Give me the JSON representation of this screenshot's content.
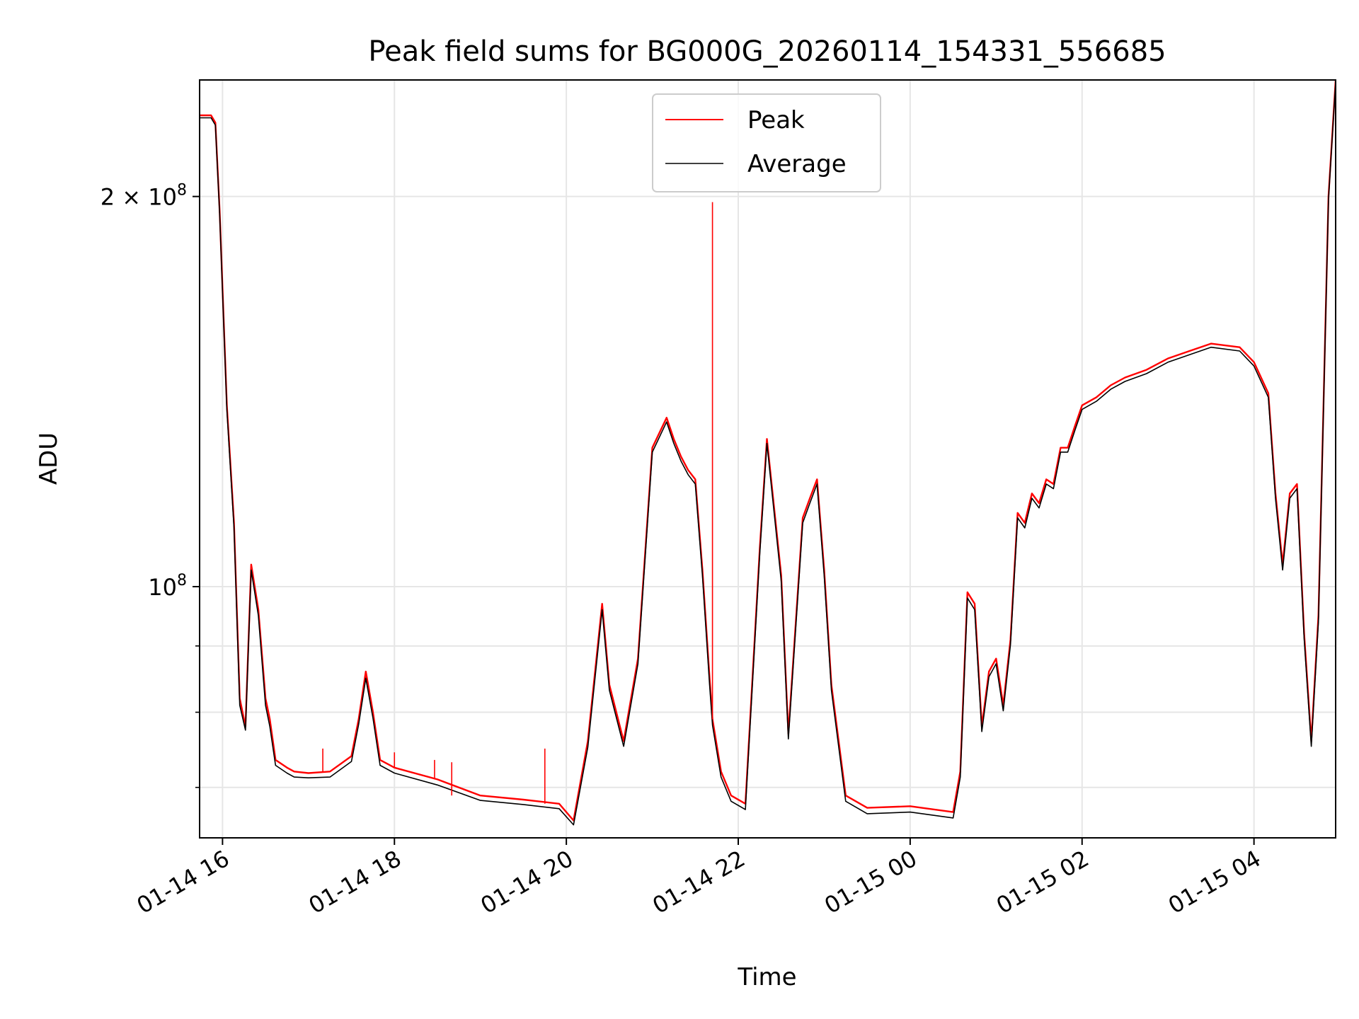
{
  "chart_data": {
    "type": "line",
    "title": "Peak field sums for BG000G_20260114_154331_556685",
    "xlabel": "Time",
    "ylabel": "ADU",
    "y_scale": "log",
    "grid": true,
    "legend_placement": "top-center",
    "xlim": [
      "2026-01-14 15:44",
      "2026-01-15 04:57"
    ],
    "ylim": [
      64000000,
      246000000
    ],
    "x_ticks": [
      "2026-01-14 16:00",
      "2026-01-14 18:00",
      "2026-01-14 20:00",
      "2026-01-14 22:00",
      "2026-01-15 00:00",
      "2026-01-15 02:00",
      "2026-01-15 04:00"
    ],
    "x_tick_labels": [
      "01-14 16",
      "01-14 18",
      "01-14 20",
      "01-14 22",
      "01-15 00",
      "01-15 02",
      "01-15 04"
    ],
    "y_tick_labels": [
      {
        "value": 200000000,
        "base": "2 × 10",
        "exp": "8"
      },
      {
        "value": 100000000,
        "base": "10",
        "exp": "8"
      }
    ],
    "y_minor_ticks": [
      70000000,
      80000000,
      90000000
    ],
    "series": [
      {
        "name": "Peak",
        "color": "#ff0000",
        "x": [
          "2026-01-14 15:44",
          "2026-01-14 15:52",
          "2026-01-14 15:55",
          "2026-01-14 15:58",
          "2026-01-14 16:03",
          "2026-01-14 16:08",
          "2026-01-14 16:12",
          "2026-01-14 16:16",
          "2026-01-14 16:20",
          "2026-01-14 16:25",
          "2026-01-14 16:30",
          "2026-01-14 16:33",
          "2026-01-14 16:37",
          "2026-01-14 16:45",
          "2026-01-14 16:50",
          "2026-01-14 17:00",
          "2026-01-14 17:15",
          "2026-01-14 17:30",
          "2026-01-14 17:35",
          "2026-01-14 17:40",
          "2026-01-14 17:45",
          "2026-01-14 17:50",
          "2026-01-14 17:55",
          "2026-01-14 18:00",
          "2026-01-14 18:30",
          "2026-01-14 19:00",
          "2026-01-14 19:30",
          "2026-01-14 19:55",
          "2026-01-14 20:05",
          "2026-01-14 20:15",
          "2026-01-14 20:25",
          "2026-01-14 20:30",
          "2026-01-14 20:40",
          "2026-01-14 20:50",
          "2026-01-14 21:00",
          "2026-01-14 21:10",
          "2026-01-14 21:15",
          "2026-01-14 21:20",
          "2026-01-14 21:25",
          "2026-01-14 21:30",
          "2026-01-14 21:35",
          "2026-01-14 21:40",
          "2026-01-14 21:42",
          "2026-01-14 21:48",
          "2026-01-14 21:55",
          "2026-01-14 22:05",
          "2026-01-14 22:15",
          "2026-01-14 22:20",
          "2026-01-14 22:30",
          "2026-01-14 22:35",
          "2026-01-14 22:45",
          "2026-01-14 22:50",
          "2026-01-14 22:55",
          "2026-01-14 23:00",
          "2026-01-14 23:05",
          "2026-01-14 23:15",
          "2026-01-14 23:30",
          "2026-01-15 00:00",
          "2026-01-15 00:30",
          "2026-01-15 00:35",
          "2026-01-15 00:40",
          "2026-01-15 00:45",
          "2026-01-15 00:50",
          "2026-01-15 00:55",
          "2026-01-15 01:00",
          "2026-01-15 01:05",
          "2026-01-15 01:10",
          "2026-01-15 01:15",
          "2026-01-15 01:20",
          "2026-01-15 01:25",
          "2026-01-15 01:30",
          "2026-01-15 01:35",
          "2026-01-15 01:40",
          "2026-01-15 01:45",
          "2026-01-15 01:50",
          "2026-01-15 01:55",
          "2026-01-15 02:00",
          "2026-01-15 02:10",
          "2026-01-15 02:20",
          "2026-01-15 02:30",
          "2026-01-15 02:45",
          "2026-01-15 03:00",
          "2026-01-15 03:15",
          "2026-01-15 03:30",
          "2026-01-15 03:50",
          "2026-01-15 04:00",
          "2026-01-15 04:10",
          "2026-01-15 04:15",
          "2026-01-15 04:20",
          "2026-01-15 04:25",
          "2026-01-15 04:30",
          "2026-01-15 04:35",
          "2026-01-15 04:40",
          "2026-01-15 04:45",
          "2026-01-15 04:52",
          "2026-01-15 04:57"
        ],
        "y": [
          231000000,
          231000000,
          228000000,
          195000000,
          138000000,
          112000000,
          82000000,
          78000000,
          104000000,
          96000000,
          82000000,
          79000000,
          73500000,
          72500000,
          72000000,
          71800000,
          72000000,
          74000000,
          79000000,
          86000000,
          80000000,
          73500000,
          73000000,
          72500000,
          71000000,
          69000000,
          68500000,
          68000000,
          66000000,
          76000000,
          97000000,
          84000000,
          76000000,
          88000000,
          128000000,
          135000000,
          130000000,
          126000000,
          123000000,
          121000000,
          103000000,
          85000000,
          79000000,
          72000000,
          69000000,
          68000000,
          107000000,
          130000000,
          102000000,
          77000000,
          113000000,
          117000000,
          121000000,
          103000000,
          84000000,
          69000000,
          67500000,
          67700000,
          67000000,
          72000000,
          99000000,
          97000000,
          78000000,
          86000000,
          88000000,
          81000000,
          91000000,
          114000000,
          112000000,
          118000000,
          116000000,
          121000000,
          120000000,
          128000000,
          128000000,
          133000000,
          138000000,
          140000000,
          143000000,
          145000000,
          147000000,
          150000000,
          152000000,
          154000000,
          153000000,
          149000000,
          141000000,
          118000000,
          104000000,
          118000000,
          120000000,
          92000000,
          76000000,
          95000000,
          200000000,
          246000000
        ]
      },
      {
        "name": "Average",
        "color": "#000000",
        "x": [
          "2026-01-14 15:44",
          "2026-01-14 15:52",
          "2026-01-14 15:55",
          "2026-01-14 15:58",
          "2026-01-14 16:03",
          "2026-01-14 16:08",
          "2026-01-14 16:12",
          "2026-01-14 16:16",
          "2026-01-14 16:20",
          "2026-01-14 16:25",
          "2026-01-14 16:30",
          "2026-01-14 16:33",
          "2026-01-14 16:37",
          "2026-01-14 16:45",
          "2026-01-14 16:50",
          "2026-01-14 17:00",
          "2026-01-14 17:15",
          "2026-01-14 17:30",
          "2026-01-14 17:35",
          "2026-01-14 17:40",
          "2026-01-14 17:45",
          "2026-01-14 17:50",
          "2026-01-14 17:55",
          "2026-01-14 18:00",
          "2026-01-14 18:30",
          "2026-01-14 19:00",
          "2026-01-14 19:30",
          "2026-01-14 19:55",
          "2026-01-14 20:05",
          "2026-01-14 20:15",
          "2026-01-14 20:25",
          "2026-01-14 20:30",
          "2026-01-14 20:40",
          "2026-01-14 20:50",
          "2026-01-14 21:00",
          "2026-01-14 21:10",
          "2026-01-14 21:15",
          "2026-01-14 21:20",
          "2026-01-14 21:25",
          "2026-01-14 21:30",
          "2026-01-14 21:35",
          "2026-01-14 21:40",
          "2026-01-14 21:42",
          "2026-01-14 21:48",
          "2026-01-14 21:55",
          "2026-01-14 22:05",
          "2026-01-14 22:15",
          "2026-01-14 22:20",
          "2026-01-14 22:30",
          "2026-01-14 22:35",
          "2026-01-14 22:45",
          "2026-01-14 22:50",
          "2026-01-14 22:55",
          "2026-01-14 23:00",
          "2026-01-14 23:05",
          "2026-01-14 23:15",
          "2026-01-14 23:30",
          "2026-01-15 00:00",
          "2026-01-15 00:30",
          "2026-01-15 00:35",
          "2026-01-15 00:40",
          "2026-01-15 00:45",
          "2026-01-15 00:50",
          "2026-01-15 00:55",
          "2026-01-15 01:00",
          "2026-01-15 01:05",
          "2026-01-15 01:10",
          "2026-01-15 01:15",
          "2026-01-15 01:20",
          "2026-01-15 01:25",
          "2026-01-15 01:30",
          "2026-01-15 01:35",
          "2026-01-15 01:40",
          "2026-01-15 01:45",
          "2026-01-15 01:50",
          "2026-01-15 01:55",
          "2026-01-15 02:00",
          "2026-01-15 02:10",
          "2026-01-15 02:20",
          "2026-01-15 02:30",
          "2026-01-15 02:45",
          "2026-01-15 03:00",
          "2026-01-15 03:15",
          "2026-01-15 03:30",
          "2026-01-15 03:50",
          "2026-01-15 04:00",
          "2026-01-15 04:10",
          "2026-01-15 04:15",
          "2026-01-15 04:20",
          "2026-01-15 04:25",
          "2026-01-15 04:30",
          "2026-01-15 04:35",
          "2026-01-15 04:40",
          "2026-01-15 04:45",
          "2026-01-15 04:52",
          "2026-01-15 04:57"
        ],
        "y": [
          230000000,
          230000000,
          227000000,
          194000000,
          137000000,
          111000000,
          81000000,
          77500000,
          103000000,
          95000000,
          81000000,
          78000000,
          72800000,
          71800000,
          71300000,
          71200000,
          71300000,
          73300000,
          78300000,
          85000000,
          79200000,
          72800000,
          72300000,
          71800000,
          70300000,
          68400000,
          67900000,
          67400000,
          65500000,
          75200000,
          96000000,
          83200000,
          75300000,
          87200000,
          127000000,
          134000000,
          129000000,
          125000000,
          122000000,
          120000000,
          102000000,
          84000000,
          78200000,
          71300000,
          68300000,
          67300000,
          106000000,
          129000000,
          101000000,
          76300000,
          112000000,
          116000000,
          120000000,
          102000000,
          83200000,
          68300000,
          66800000,
          67000000,
          66300000,
          71300000,
          98000000,
          96000000,
          77300000,
          85200000,
          87200000,
          80200000,
          90200000,
          113000000,
          111000000,
          117000000,
          115000000,
          120000000,
          119000000,
          127000000,
          127000000,
          132000000,
          137000000,
          139000000,
          142000000,
          144000000,
          146000000,
          149000000,
          151000000,
          153000000,
          152000000,
          148000000,
          140000000,
          117000000,
          103000000,
          117000000,
          119000000,
          91200000,
          75300000,
          94000000,
          199000000,
          245000000
        ]
      }
    ],
    "spikes": [
      {
        "series": "Peak",
        "x": "2026-01-14 21:42",
        "y": 198000000
      },
      {
        "series": "Peak",
        "x": "2026-01-14 17:10",
        "y": 75000000
      },
      {
        "series": "Peak",
        "x": "2026-01-14 18:00",
        "y": 74500000
      },
      {
        "series": "Peak",
        "x": "2026-01-14 18:28",
        "y": 73500000
      },
      {
        "series": "Peak",
        "x": "2026-01-14 18:40",
        "y": 73200000
      },
      {
        "series": "Peak",
        "x": "2026-01-14 19:45",
        "y": 75000000
      }
    ]
  }
}
